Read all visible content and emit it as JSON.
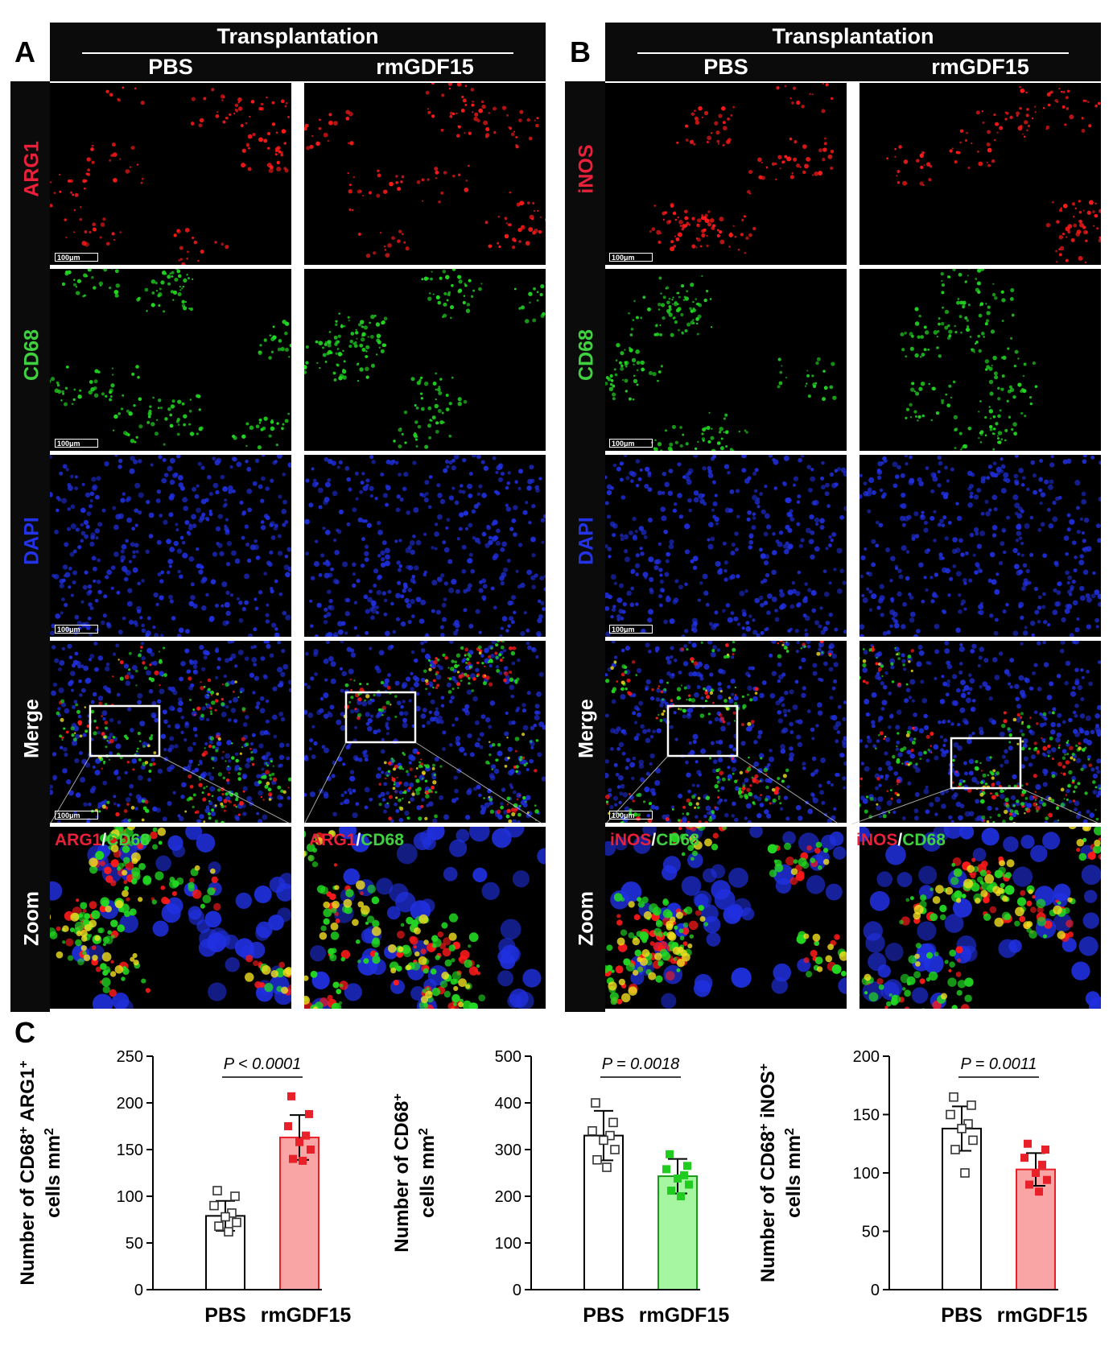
{
  "panel_a": {
    "letter": "A",
    "header": "Transplantation",
    "columns": [
      "PBS",
      "rmGDF15"
    ],
    "rows": [
      "ARG1",
      "CD68",
      "DAPI",
      "Merge",
      "Zoom"
    ],
    "scale_bar": "100μm",
    "zoom_label_a": "ARG1",
    "zoom_label_sep": "/",
    "zoom_label_b": "CD68"
  },
  "panel_b": {
    "letter": "B",
    "header": "Transplantation",
    "columns": [
      "PBS",
      "rmGDF15"
    ],
    "rows": [
      "iNOS",
      "CD68",
      "DAPI",
      "Merge",
      "Zoom"
    ],
    "scale_bar": "100μm",
    "zoom_label_a": "iNOS",
    "zoom_label_sep": "/",
    "zoom_label_b": "CD68"
  },
  "panel_c": {
    "letter": "C"
  },
  "colors": {
    "red": "#e8203a",
    "green": "#3fd13f",
    "blue": "#2433e8",
    "pink_bar": "#f9a5a5",
    "lightgreen_bar": "#a6f5a0",
    "red_point": "#e8202a",
    "green_point": "#1fcc1f"
  },
  "chart_data": [
    {
      "type": "bar",
      "categories": [
        "PBS",
        "rmGDF15"
      ],
      "ylabel_line1": "Number of CD68",
      "ylabel_sup1": "+",
      "ylabel_mid": " ARG1",
      "ylabel_sup2": "+",
      "ylabel_line2": "cells mm",
      "ylabel_sup3": "2",
      "ylim": [
        0,
        250
      ],
      "yticks": [
        0,
        50,
        100,
        150,
        200,
        250
      ],
      "means": [
        79,
        163
      ],
      "sd": [
        16,
        24
      ],
      "points": [
        [
          106,
          100,
          90,
          82,
          78,
          72,
          68,
          62
        ],
        [
          207,
          188,
          175,
          165,
          158,
          150,
          140,
          138
        ]
      ],
      "pvalue": "P < 0.0001",
      "bar_fill": [
        "#ffffff",
        "#f9a5a5"
      ],
      "bar_edge": [
        "#000000",
        "#e8202a"
      ],
      "point_style": [
        "open-square",
        "filled-red"
      ]
    },
    {
      "type": "bar",
      "categories": [
        "PBS",
        "rmGDF15"
      ],
      "ylabel_line1": "Number of CD68",
      "ylabel_sup1": "+",
      "ylabel_mid": "",
      "ylabel_sup2": "",
      "ylabel_line2": "cells mm",
      "ylabel_sup3": "2",
      "ylim": [
        0,
        500
      ],
      "yticks": [
        0,
        100,
        200,
        300,
        400,
        500
      ],
      "means": [
        330,
        243
      ],
      "sd": [
        53,
        37
      ],
      "points": [
        [
          400,
          358,
          340,
          330,
          320,
          300,
          278,
          262
        ],
        [
          290,
          265,
          258,
          245,
          238,
          225,
          212,
          200
        ]
      ],
      "pvalue": "P = 0.0018",
      "bar_fill": [
        "#ffffff",
        "#a6f5a0"
      ],
      "bar_edge": [
        "#000000",
        "#1a9a1a"
      ],
      "point_style": [
        "open-square",
        "filled-green"
      ]
    },
    {
      "type": "bar",
      "categories": [
        "PBS",
        "rmGDF15"
      ],
      "ylabel_line1": "Number of CD68",
      "ylabel_sup1": "+",
      "ylabel_mid": " iNOS",
      "ylabel_sup2": "+",
      "ylabel_line2": "cells mm",
      "ylabel_sup3": "2",
      "ylim": [
        0,
        200
      ],
      "yticks": [
        0,
        50,
        100,
        150,
        200
      ],
      "means": [
        138,
        103
      ],
      "sd": [
        19,
        14
      ],
      "points": [
        [
          165,
          158,
          150,
          142,
          138,
          128,
          120,
          100
        ],
        [
          125,
          120,
          113,
          107,
          100,
          94,
          90,
          84
        ]
      ],
      "pvalue": "P = 0.0011",
      "bar_fill": [
        "#ffffff",
        "#f9a5a5"
      ],
      "bar_edge": [
        "#000000",
        "#e8202a"
      ],
      "point_style": [
        "open-square",
        "filled-red"
      ]
    }
  ]
}
